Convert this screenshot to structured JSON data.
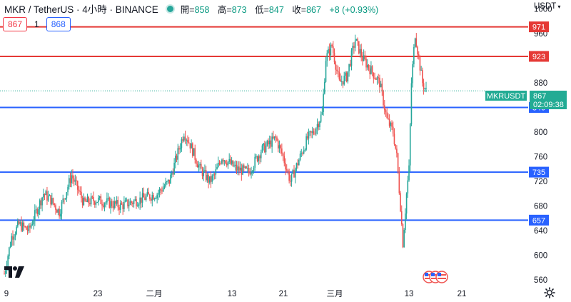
{
  "header": {
    "symbol_title": "MKR / TetherUS · 4小時 · BINANCE",
    "open_label": "開=",
    "open": "858",
    "high_label": "高=",
    "high": "873",
    "low_label": "低=",
    "low": "847",
    "close_label": "收=",
    "close": "867",
    "change": "+8 (+0.93%)"
  },
  "quote": {
    "sell": "867",
    "spread": "1",
    "buy": "868"
  },
  "currency": "USDT",
  "price_axis": {
    "ticks": [
      "1000",
      "960",
      "880",
      "800",
      "760",
      "720",
      "680",
      "640",
      "600",
      "560"
    ]
  },
  "time_axis": {
    "labels": [
      "9",
      "23",
      "二月",
      "13",
      "21",
      "三月",
      "13",
      "21"
    ]
  },
  "level_labels": [
    "971",
    "923",
    "840",
    "735",
    "657"
  ],
  "last_price": {
    "symbol": "MKRUSDT",
    "price": "867",
    "countdown": "02:09:38"
  },
  "colors": {
    "up": "#26a69a",
    "down": "#ef5350",
    "resistance": "#e53935",
    "support": "#2962ff",
    "tag_green": "#22ab94"
  },
  "icons": {
    "logo": "tradingview-logo",
    "settings": "gear-icon",
    "events": "us-flag-event-icons"
  },
  "chart_data": {
    "type": "candlestick",
    "y_unit": "USDT",
    "ylim": [
      553,
      1003
    ],
    "levels": [
      {
        "price": 971,
        "kind": "resistance"
      },
      {
        "price": 923,
        "kind": "resistance"
      },
      {
        "price": 840,
        "kind": "support"
      },
      {
        "price": 735,
        "kind": "support"
      },
      {
        "price": 657,
        "kind": "support"
      }
    ],
    "last_price": 867,
    "path_keypoints": [
      [
        0,
        570
      ],
      [
        6,
        630
      ],
      [
        12,
        650
      ],
      [
        20,
        640
      ],
      [
        32,
        700
      ],
      [
        38,
        690
      ],
      [
        45,
        670
      ],
      [
        55,
        730
      ],
      [
        65,
        685
      ],
      [
        75,
        690
      ],
      [
        95,
        680
      ],
      [
        110,
        690
      ],
      [
        125,
        700
      ],
      [
        135,
        720
      ],
      [
        147,
        800
      ],
      [
        152,
        780
      ],
      [
        160,
        740
      ],
      [
        168,
        720
      ],
      [
        172,
        730
      ],
      [
        178,
        760
      ],
      [
        190,
        740
      ],
      [
        200,
        735
      ],
      [
        210,
        770
      ],
      [
        216,
        780
      ],
      [
        222,
        790
      ],
      [
        228,
        760
      ],
      [
        234,
        720
      ],
      [
        240,
        750
      ],
      [
        248,
        790
      ],
      [
        253,
        800
      ],
      [
        260,
        830
      ],
      [
        263,
        920
      ],
      [
        268,
        940
      ],
      [
        274,
        880
      ],
      [
        280,
        890
      ],
      [
        287,
        950
      ],
      [
        293,
        920
      ],
      [
        300,
        900
      ],
      [
        307,
        880
      ],
      [
        313,
        820
      ],
      [
        318,
        800
      ],
      [
        321,
        760
      ],
      [
        324,
        680
      ],
      [
        326,
        620
      ],
      [
        329,
        700
      ],
      [
        331,
        740
      ],
      [
        333,
        880
      ],
      [
        336,
        960
      ],
      [
        339,
        920
      ],
      [
        342,
        880
      ],
      [
        345,
        867
      ]
    ]
  }
}
